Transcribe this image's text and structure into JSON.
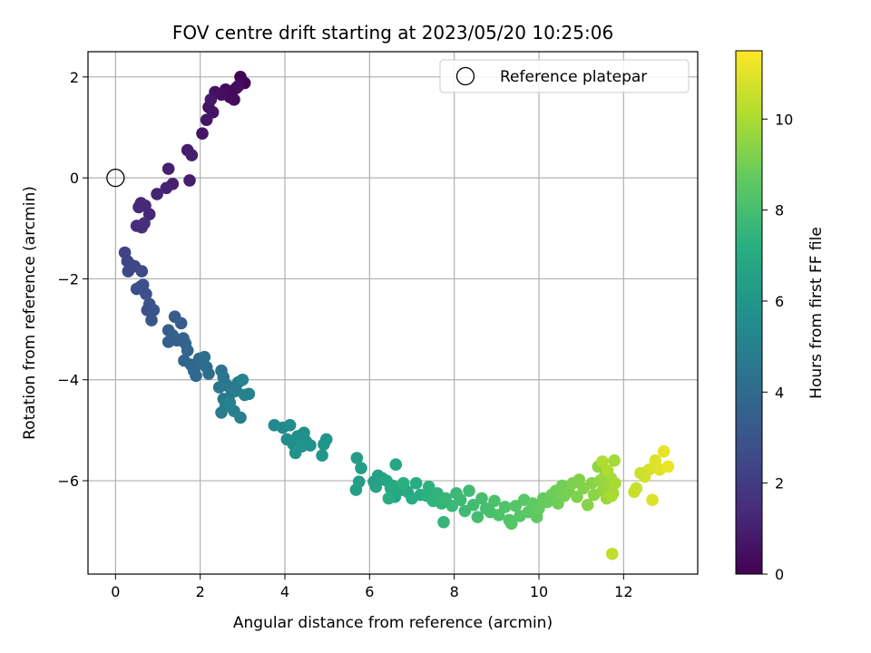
{
  "chart_data": {
    "type": "scatter",
    "title": "FOV centre drift starting at 2023/05/20 10:25:06",
    "xlabel": "Angular distance from reference (arcmin)",
    "ylabel": "Rotation from reference (arcmin)",
    "xlim": [
      -0.65,
      13.75
    ],
    "ylim": [
      -7.85,
      2.5
    ],
    "xticks": [
      0,
      2,
      4,
      6,
      8,
      10,
      12
    ],
    "yticks": [
      -6,
      -4,
      -2,
      0,
      2
    ],
    "grid": true,
    "legend": {
      "placement": "top-right",
      "entries": [
        "Reference platepar"
      ]
    },
    "reference_point": {
      "x": 0,
      "y": 0
    },
    "colorbar": {
      "label": "Hours from first FF file",
      "range": [
        0,
        11.5
      ],
      "ticks": [
        0,
        2,
        4,
        6,
        8,
        10
      ],
      "colormap": "viridis"
    },
    "points": [
      [
        2.95,
        2.0,
        0.05
      ],
      [
        3.05,
        1.88,
        0.1
      ],
      [
        2.85,
        1.78,
        0.15
      ],
      [
        2.7,
        1.6,
        0.2
      ],
      [
        2.75,
        1.72,
        0.25
      ],
      [
        2.6,
        1.75,
        0.3
      ],
      [
        2.8,
        1.55,
        0.35
      ],
      [
        2.9,
        1.82,
        0.4
      ],
      [
        2.5,
        1.65,
        0.45
      ],
      [
        2.35,
        1.7,
        0.5
      ],
      [
        2.2,
        1.4,
        0.55
      ],
      [
        2.3,
        1.3,
        0.6
      ],
      [
        2.15,
        1.15,
        0.65
      ],
      [
        2.05,
        0.88,
        0.7
      ],
      [
        2.25,
        1.55,
        0.75
      ],
      [
        1.7,
        0.55,
        0.85
      ],
      [
        1.8,
        0.45,
        0.9
      ],
      [
        1.75,
        -0.05,
        0.95
      ],
      [
        1.25,
        0.18,
        1.0
      ],
      [
        1.35,
        -0.12,
        1.05
      ],
      [
        1.2,
        -0.2,
        1.1
      ],
      [
        0.98,
        -0.32,
        1.15
      ],
      [
        0.8,
        -0.72,
        1.2
      ],
      [
        0.7,
        -0.55,
        1.25
      ],
      [
        0.6,
        -0.5,
        1.3
      ],
      [
        0.55,
        -0.58,
        1.35
      ],
      [
        0.5,
        -0.95,
        1.45
      ],
      [
        0.62,
        -0.98,
        1.5
      ],
      [
        0.68,
        -0.9,
        1.55
      ],
      [
        0.22,
        -1.48,
        2.3
      ],
      [
        0.28,
        -1.65,
        2.35
      ],
      [
        0.35,
        -1.72,
        2.4
      ],
      [
        0.3,
        -1.85,
        2.45
      ],
      [
        0.45,
        -1.75,
        2.5
      ],
      [
        0.62,
        -1.85,
        2.6
      ],
      [
        0.5,
        -2.2,
        2.7
      ],
      [
        0.6,
        -2.15,
        2.75
      ],
      [
        0.72,
        -2.3,
        2.8
      ],
      [
        0.65,
        -2.12,
        2.85
      ],
      [
        0.8,
        -2.5,
        2.9
      ],
      [
        0.75,
        -2.62,
        2.95
      ],
      [
        0.9,
        -2.62,
        3.0
      ],
      [
        0.85,
        -2.82,
        3.05
      ],
      [
        1.4,
        -2.75,
        3.3
      ],
      [
        1.55,
        -2.88,
        3.35
      ],
      [
        1.25,
        -3.02,
        3.4
      ],
      [
        1.35,
        -3.12,
        3.45
      ],
      [
        1.25,
        -3.25,
        3.5
      ],
      [
        1.45,
        -3.22,
        3.55
      ],
      [
        1.6,
        -3.18,
        3.6
      ],
      [
        1.65,
        -3.28,
        3.65
      ],
      [
        1.7,
        -3.42,
        3.7
      ],
      [
        1.62,
        -3.62,
        3.75
      ],
      [
        1.78,
        -3.7,
        3.8
      ],
      [
        1.85,
        -3.82,
        3.85
      ],
      [
        1.9,
        -3.92,
        3.9
      ],
      [
        1.98,
        -3.58,
        3.95
      ],
      [
        2.05,
        -3.68,
        4.0
      ],
      [
        2.15,
        -3.75,
        4.05
      ],
      [
        2.2,
        -3.88,
        4.1
      ],
      [
        2.1,
        -3.55,
        4.15
      ],
      [
        2.5,
        -3.82,
        4.4
      ],
      [
        2.55,
        -3.95,
        4.45
      ],
      [
        2.45,
        -4.15,
        4.5
      ],
      [
        2.55,
        -4.38,
        4.55
      ],
      [
        2.65,
        -4.12,
        4.6
      ],
      [
        2.75,
        -4.25,
        4.65
      ],
      [
        2.9,
        -4.05,
        4.7
      ],
      [
        2.85,
        -4.22,
        4.75
      ],
      [
        2.6,
        -4.52,
        4.8
      ],
      [
        2.5,
        -4.65,
        4.85
      ],
      [
        2.8,
        -4.62,
        4.9
      ],
      [
        2.95,
        -4.75,
        4.95
      ],
      [
        3.05,
        -4.3,
        5.0
      ],
      [
        3.15,
        -4.28,
        5.05
      ],
      [
        2.7,
        -4.45,
        5.1
      ],
      [
        3.0,
        -4.0,
        5.15
      ],
      [
        3.75,
        -4.9,
        5.4
      ],
      [
        3.95,
        -4.95,
        5.45
      ],
      [
        4.12,
        -4.9,
        5.5
      ],
      [
        4.05,
        -5.18,
        5.55
      ],
      [
        4.2,
        -5.28,
        5.6
      ],
      [
        4.3,
        -5.12,
        5.65
      ],
      [
        4.45,
        -5.05,
        5.7
      ],
      [
        4.5,
        -5.22,
        5.75
      ],
      [
        4.6,
        -5.3,
        5.8
      ],
      [
        4.25,
        -5.45,
        5.85
      ],
      [
        4.4,
        -5.32,
        5.9
      ],
      [
        4.92,
        -5.28,
        5.95
      ],
      [
        4.98,
        -5.18,
        6.0
      ],
      [
        4.88,
        -5.5,
        6.05
      ],
      [
        5.7,
        -5.55,
        6.3
      ],
      [
        5.8,
        -5.75,
        6.35
      ],
      [
        5.75,
        -6.02,
        6.4
      ],
      [
        5.68,
        -6.18,
        6.45
      ],
      [
        6.1,
        -6.02,
        6.5
      ],
      [
        6.2,
        -5.9,
        6.55
      ],
      [
        6.3,
        -5.95,
        6.6
      ],
      [
        6.15,
        -6.12,
        6.65
      ],
      [
        6.4,
        -6.0,
        6.7
      ],
      [
        6.5,
        -6.15,
        6.75
      ],
      [
        6.62,
        -5.68,
        6.8
      ],
      [
        6.6,
        -6.32,
        6.85
      ],
      [
        6.75,
        -6.18,
        6.9
      ],
      [
        6.55,
        -6.1,
        6.95
      ],
      [
        6.9,
        -6.22,
        7.0
      ],
      [
        7.0,
        -6.35,
        7.05
      ],
      [
        7.1,
        -6.05,
        7.1
      ],
      [
        7.2,
        -6.28,
        7.15
      ],
      [
        6.45,
        -6.35,
        7.2
      ],
      [
        6.8,
        -6.05,
        7.25
      ],
      [
        7.35,
        -6.3,
        7.3
      ],
      [
        7.4,
        -6.12,
        7.35
      ],
      [
        7.5,
        -6.4,
        7.4
      ],
      [
        7.6,
        -6.25,
        7.45
      ],
      [
        7.7,
        -6.45,
        7.5
      ],
      [
        7.75,
        -6.82,
        7.55
      ],
      [
        7.8,
        -6.35,
        7.6
      ],
      [
        7.95,
        -6.5,
        7.65
      ],
      [
        8.05,
        -6.25,
        7.7
      ],
      [
        8.15,
        -6.38,
        7.75
      ],
      [
        8.25,
        -6.6,
        7.8
      ],
      [
        8.35,
        -6.2,
        7.85
      ],
      [
        8.45,
        -6.48,
        7.9
      ],
      [
        8.55,
        -6.72,
        7.95
      ],
      [
        8.65,
        -6.35,
        8.0
      ],
      [
        8.75,
        -6.55,
        8.05
      ],
      [
        8.85,
        -6.62,
        8.1
      ],
      [
        8.95,
        -6.4,
        8.15
      ],
      [
        9.05,
        -6.68,
        8.2
      ],
      [
        9.2,
        -6.52,
        8.25
      ],
      [
        9.3,
        -6.78,
        8.3
      ],
      [
        9.35,
        -6.85,
        8.35
      ],
      [
        9.45,
        -6.5,
        8.4
      ],
      [
        9.55,
        -6.7,
        8.45
      ],
      [
        9.65,
        -6.38,
        8.5
      ],
      [
        9.75,
        -6.62,
        8.55
      ],
      [
        9.85,
        -6.45,
        8.6
      ],
      [
        9.95,
        -6.72,
        8.65
      ],
      [
        10.0,
        -6.55,
        8.7
      ],
      [
        10.1,
        -6.35,
        8.75
      ],
      [
        10.2,
        -6.42,
        8.8
      ],
      [
        10.3,
        -6.28,
        8.85
      ],
      [
        10.4,
        -6.2,
        8.9
      ],
      [
        10.45,
        -6.45,
        8.95
      ],
      [
        10.55,
        -6.1,
        9.0
      ],
      [
        10.6,
        -6.3,
        9.05
      ],
      [
        10.7,
        -6.2,
        9.1
      ],
      [
        10.8,
        -6.05,
        9.15
      ],
      [
        10.9,
        -6.32,
        9.2
      ],
      [
        10.95,
        -5.98,
        9.25
      ],
      [
        11.05,
        -6.15,
        9.3
      ],
      [
        11.15,
        -6.48,
        9.35
      ],
      [
        11.25,
        -6.05,
        9.4
      ],
      [
        11.3,
        -6.28,
        9.45
      ],
      [
        11.4,
        -5.72,
        9.5
      ],
      [
        11.45,
        -6.0,
        9.55
      ],
      [
        11.5,
        -6.2,
        9.6
      ],
      [
        11.55,
        -5.92,
        9.65
      ],
      [
        11.6,
        -6.35,
        9.7
      ],
      [
        11.65,
        -6.12,
        9.75
      ],
      [
        11.7,
        -5.95,
        9.8
      ],
      [
        11.75,
        -6.25,
        9.85
      ],
      [
        11.78,
        -5.6,
        9.9
      ],
      [
        11.8,
        -6.05,
        9.95
      ],
      [
        11.72,
        -6.3,
        10.0
      ],
      [
        11.62,
        -5.8,
        10.05
      ],
      [
        11.5,
        -5.62,
        10.1
      ],
      [
        11.73,
        -7.45,
        10.4
      ],
      [
        12.3,
        -6.15,
        10.5
      ],
      [
        12.25,
        -6.22,
        10.55
      ],
      [
        12.5,
        -5.92,
        10.7
      ],
      [
        12.6,
        -5.78,
        10.8
      ],
      [
        12.68,
        -6.38,
        10.9
      ],
      [
        12.75,
        -5.6,
        10.95
      ],
      [
        12.85,
        -5.78,
        11.0
      ],
      [
        12.95,
        -5.42,
        11.1
      ],
      [
        13.05,
        -5.72,
        11.2
      ],
      [
        12.4,
        -5.85,
        10.6
      ]
    ]
  }
}
